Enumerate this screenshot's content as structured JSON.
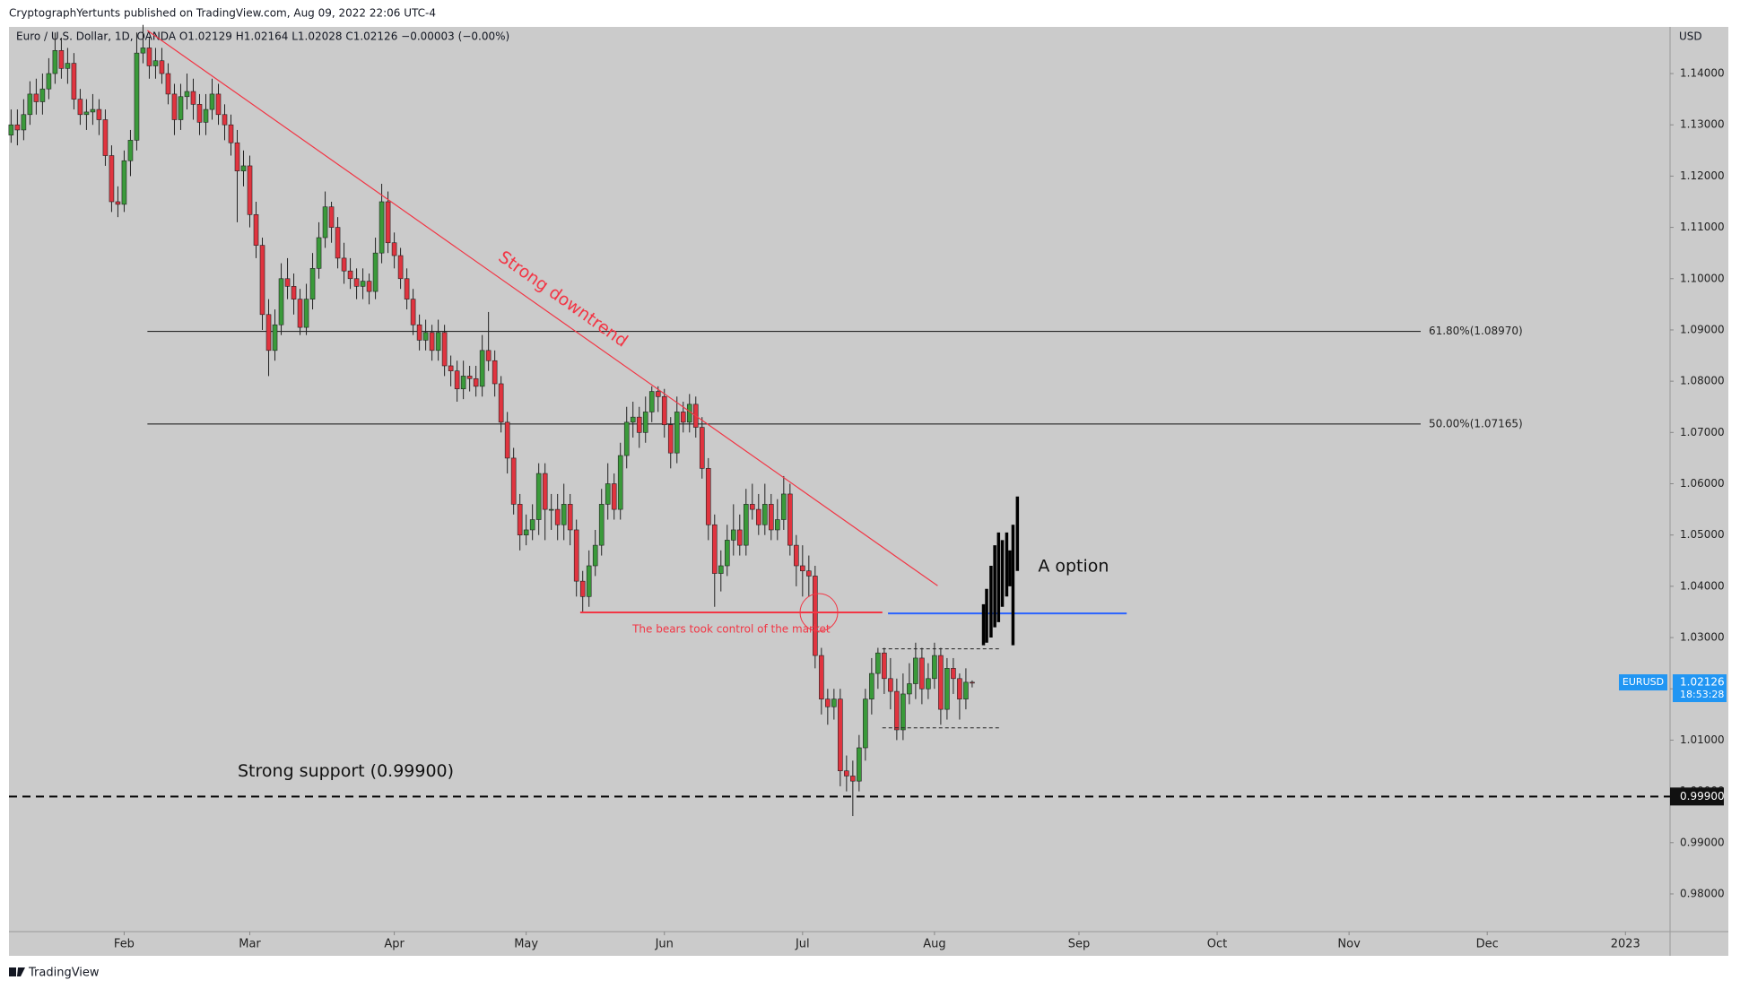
{
  "header": {
    "publisher": "CryptographYertunts published on TradingView.com, Aug 09, 2022 22:06 UTC-4",
    "legend": "Euro / U.S. Dollar, 1D, OANDA  O1.02129  H1.02164  L1.02028  C1.02126  −0.00003 (−0.00%)"
  },
  "chart_data": {
    "type": "candlestick",
    "currency": "USD",
    "up_color": "#3a9a3a",
    "down_color": "#e0343f",
    "grid": false,
    "open": [
      1.128,
      1.13,
      1.129,
      1.132,
      1.136,
      1.1345,
      1.137,
      1.14,
      1.1445,
      1.141,
      1.142,
      1.135,
      1.132,
      1.1325,
      1.133,
      1.131,
      1.124,
      1.115,
      1.1145,
      1.123,
      1.127,
      1.144,
      1.145,
      1.1415,
      1.1425,
      1.14,
      1.136,
      1.131,
      1.1355,
      1.1365,
      1.134,
      1.1305,
      1.133,
      1.136,
      1.132,
      1.13,
      1.1265,
      1.121,
      1.122,
      1.1125,
      1.1065,
      1.093,
      1.086,
      1.091,
      1.1,
      1.0985,
      1.096,
      1.0905,
      1.096,
      1.102,
      1.108,
      1.114,
      1.11,
      1.104,
      1.1015,
      1.1,
      1.0985,
      1.0995,
      1.0975,
      1.105,
      1.115,
      1.107,
      1.1045,
      1.1,
      1.096,
      1.091,
      1.088,
      1.0895,
      1.086,
      1.0895,
      1.083,
      1.082,
      1.0785,
      1.081,
      1.0805,
      1.079,
      1.086,
      1.084,
      1.0795,
      1.072,
      1.065,
      1.056,
      1.05,
      1.051,
      1.053,
      1.062,
      1.055,
      1.055,
      1.052,
      1.056,
      1.051,
      1.041,
      1.038,
      1.044,
      1.048,
      1.056,
      1.06,
      1.055,
      1.0655,
      1.072,
      1.073,
      1.07,
      1.074,
      1.078,
      1.077,
      1.0715,
      1.066,
      1.074,
      1.072,
      1.0755,
      1.071,
      1.063,
      1.052,
      1.0425,
      1.044,
      1.049,
      1.051,
      1.048,
      1.056,
      1.055,
      1.052,
      1.056,
      1.051,
      1.053,
      1.058,
      1.048,
      1.044,
      1.043,
      1.042,
      1.0265,
      1.018,
      1.0165,
      1.018,
      1.004,
      1.003,
      1.002,
      1.0085,
      1.018,
      1.023,
      1.027,
      1.022,
      1.0195,
      1.012,
      1.019,
      1.021,
      1.026,
      1.02,
      1.022,
      1.0265,
      1.016,
      1.024,
      1.022,
      1.018,
      1.02129
    ],
    "high": [
      1.133,
      1.133,
      1.135,
      1.1385,
      1.139,
      1.14,
      1.143,
      1.148,
      1.147,
      1.145,
      1.144,
      1.137,
      1.135,
      1.136,
      1.135,
      1.133,
      1.126,
      1.118,
      1.125,
      1.129,
      1.148,
      1.1495,
      1.147,
      1.145,
      1.145,
      1.142,
      1.138,
      1.138,
      1.14,
      1.139,
      1.136,
      1.136,
      1.139,
      1.138,
      1.134,
      1.132,
      1.129,
      1.125,
      1.124,
      1.115,
      1.108,
      1.096,
      1.094,
      1.103,
      1.104,
      1.101,
      1.098,
      1.099,
      1.105,
      1.111,
      1.117,
      1.115,
      1.112,
      1.107,
      1.104,
      1.102,
      1.102,
      1.101,
      1.108,
      1.1185,
      1.117,
      1.109,
      1.106,
      1.102,
      1.098,
      1.093,
      1.092,
      1.091,
      1.092,
      1.091,
      1.085,
      1.084,
      1.084,
      1.083,
      1.083,
      1.089,
      1.0935,
      1.086,
      1.081,
      1.074,
      1.067,
      1.058,
      1.054,
      1.056,
      1.064,
      1.064,
      1.058,
      1.058,
      1.06,
      1.058,
      1.053,
      1.043,
      1.047,
      1.051,
      1.059,
      1.064,
      1.062,
      1.068,
      1.075,
      1.076,
      1.075,
      1.077,
      1.079,
      1.079,
      1.0785,
      1.073,
      1.077,
      1.076,
      1.0775,
      1.077,
      1.073,
      1.065,
      1.054,
      1.047,
      1.052,
      1.056,
      1.054,
      1.059,
      1.06,
      1.058,
      1.06,
      1.058,
      1.057,
      1.0615,
      1.06,
      1.05,
      1.048,
      1.046,
      1.044,
      1.028,
      1.02,
      1.02,
      1.02,
      1.007,
      1.006,
      1.011,
      1.02,
      1.026,
      1.028,
      1.028,
      1.026,
      1.022,
      1.023,
      1.025,
      1.029,
      1.028,
      1.025,
      1.029,
      1.028,
      1.026,
      1.026,
      1.023,
      1.024,
      1.02164
    ],
    "low": [
      1.1265,
      1.126,
      1.127,
      1.13,
      1.132,
      1.132,
      1.135,
      1.138,
      1.139,
      1.138,
      1.133,
      1.13,
      1.129,
      1.13,
      1.128,
      1.122,
      1.113,
      1.112,
      1.113,
      1.12,
      1.125,
      1.142,
      1.139,
      1.139,
      1.138,
      1.134,
      1.128,
      1.129,
      1.133,
      1.131,
      1.128,
      1.128,
      1.131,
      1.13,
      1.127,
      1.124,
      1.111,
      1.118,
      1.11,
      1.104,
      1.09,
      1.081,
      1.084,
      1.089,
      1.096,
      1.093,
      1.089,
      1.089,
      1.094,
      1.1,
      1.106,
      1.107,
      1.102,
      1.099,
      1.098,
      1.096,
      1.096,
      1.095,
      1.096,
      1.103,
      1.105,
      1.102,
      1.098,
      1.094,
      1.089,
      1.086,
      1.086,
      1.084,
      1.084,
      1.081,
      1.079,
      1.076,
      1.0765,
      1.078,
      1.077,
      1.077,
      1.082,
      1.077,
      1.07,
      1.062,
      1.054,
      1.047,
      1.048,
      1.049,
      1.05,
      1.049,
      1.051,
      1.049,
      1.049,
      1.048,
      1.038,
      1.035,
      1.036,
      1.042,
      1.046,
      1.053,
      1.053,
      1.053,
      1.063,
      1.069,
      1.067,
      1.068,
      1.072,
      1.074,
      1.069,
      1.063,
      1.064,
      1.07,
      1.07,
      1.069,
      1.061,
      1.049,
      1.036,
      1.039,
      1.042,
      1.046,
      1.046,
      1.046,
      1.053,
      1.05,
      1.05,
      1.049,
      1.049,
      1.051,
      1.046,
      1.04,
      1.038,
      1.038,
      1.024,
      1.015,
      1.013,
      1.014,
      1.001,
      1.0,
      0.9952,
      1.0,
      1.006,
      1.015,
      1.02,
      1.019,
      1.016,
      1.01,
      1.01,
      1.017,
      1.018,
      1.017,
      1.018,
      1.02,
      1.013,
      1.014,
      1.019,
      1.014,
      1.016,
      1.02028
    ],
    "close": [
      1.13,
      1.129,
      1.132,
      1.136,
      1.1345,
      1.137,
      1.14,
      1.1445,
      1.141,
      1.142,
      1.135,
      1.132,
      1.1325,
      1.133,
      1.131,
      1.124,
      1.115,
      1.1145,
      1.123,
      1.127,
      1.144,
      1.145,
      1.1415,
      1.1425,
      1.14,
      1.136,
      1.131,
      1.1355,
      1.1365,
      1.134,
      1.1305,
      1.133,
      1.136,
      1.132,
      1.13,
      1.1265,
      1.121,
      1.122,
      1.1125,
      1.1065,
      1.093,
      1.086,
      1.091,
      1.1,
      1.0985,
      1.096,
      1.0905,
      1.096,
      1.102,
      1.108,
      1.114,
      1.11,
      1.104,
      1.1015,
      1.1,
      1.0985,
      1.0995,
      1.0975,
      1.105,
      1.115,
      1.107,
      1.1045,
      1.1,
      1.096,
      1.091,
      1.088,
      1.0895,
      1.086,
      1.0895,
      1.083,
      1.082,
      1.0785,
      1.081,
      1.0805,
      1.079,
      1.086,
      1.084,
      1.0795,
      1.072,
      1.065,
      1.056,
      1.05,
      1.051,
      1.053,
      1.062,
      1.055,
      1.055,
      1.052,
      1.056,
      1.051,
      1.041,
      1.038,
      1.044,
      1.048,
      1.056,
      1.06,
      1.055,
      1.0655,
      1.072,
      1.073,
      1.07,
      1.074,
      1.078,
      1.077,
      1.0715,
      1.066,
      1.074,
      1.072,
      1.0755,
      1.071,
      1.063,
      1.052,
      1.0425,
      1.044,
      1.049,
      1.051,
      1.048,
      1.056,
      1.055,
      1.052,
      1.056,
      1.051,
      1.053,
      1.058,
      1.048,
      1.044,
      1.043,
      1.042,
      1.0265,
      1.018,
      1.0165,
      1.018,
      1.004,
      1.003,
      1.002,
      1.0085,
      1.018,
      1.023,
      1.027,
      1.022,
      1.0195,
      1.012,
      1.019,
      1.021,
      1.026,
      1.02,
      1.022,
      1.0265,
      1.016,
      1.024,
      1.022,
      1.018,
      1.02129,
      1.02126
    ],
    "xlim": [
      -0.34,
      264.1
    ],
    "xticks": [
      {
        "value": 18,
        "label": "Feb"
      },
      {
        "value": 38,
        "label": "Mar"
      },
      {
        "value": 61,
        "label": "Apr"
      },
      {
        "value": 82,
        "label": "May"
      },
      {
        "value": 104,
        "label": "Jun"
      },
      {
        "value": 126,
        "label": "Jul"
      },
      {
        "value": 147,
        "label": "Aug"
      },
      {
        "value": 170,
        "label": "Sep"
      },
      {
        "value": 192,
        "label": "Oct"
      },
      {
        "value": 213,
        "label": "Nov"
      },
      {
        "value": 235,
        "label": "Dec"
      },
      {
        "value": 257,
        "label": "2023"
      }
    ],
    "ylim": [
      0.97265,
      1.1491
    ],
    "yticks": [
      {
        "value": 0.98,
        "label": "0.98000"
      },
      {
        "value": 0.99,
        "label": "0.99000"
      },
      {
        "value": 1.0,
        "label": "1.00000"
      },
      {
        "value": 1.01,
        "label": "1.01000"
      },
      {
        "value": 1.02,
        "label": "1.02000"
      },
      {
        "value": 1.03,
        "label": "1.03000"
      },
      {
        "value": 1.04,
        "label": "1.04000"
      },
      {
        "value": 1.05,
        "label": "1.05000"
      },
      {
        "value": 1.06,
        "label": "1.06000"
      },
      {
        "value": 1.07,
        "label": "1.07000"
      },
      {
        "value": 1.08,
        "label": "1.08000"
      },
      {
        "value": 1.09,
        "label": "1.09000"
      },
      {
        "value": 1.1,
        "label": "1.10000"
      },
      {
        "value": 1.11,
        "label": "1.11000"
      },
      {
        "value": 1.12,
        "label": "1.12000"
      },
      {
        "value": 1.13,
        "label": "1.13000"
      },
      {
        "value": 1.14,
        "label": "1.14000"
      }
    ],
    "last_price": {
      "symbol": "EURUSD",
      "value": 1.02126,
      "countdown": "18:53:28",
      "color": "#2196f3"
    },
    "annotations": {
      "fib_levels": [
        {
          "value": 1.0897,
          "label": "61.80%(1.08970)",
          "x": [
            21.7,
            224.4
          ]
        },
        {
          "value": 1.07165,
          "label": "50.00%(1.07165)",
          "x": [
            21.7,
            224.4
          ]
        }
      ],
      "trendline": {
        "text": "Strong downtrend",
        "x": [
          21.7,
          147.5
        ],
        "y": [
          1.1484,
          1.0401
        ],
        "color": "#f23645"
      },
      "bears_line": {
        "text": "The bears took control of the market",
        "x": [
          90.6,
          138.7
        ],
        "y": 1.0349,
        "color": "#f23645",
        "circle_x": 128.6
      },
      "blue_line": {
        "x": [
          139.6,
          177.6
        ],
        "y": 1.0347,
        "color": "#2962ff"
      },
      "range_box": {
        "x": [
          138.7,
          157.4
        ],
        "top": 1.0278,
        "bottom": 1.0124
      },
      "support": {
        "value": 0.999,
        "label": "0.99900",
        "text": "Strong support (0.99900)"
      },
      "projection": {
        "text": "A option",
        "x": [
          154.8,
          155.3,
          156,
          156.6,
          157.2,
          157.8,
          158.5,
          159,
          159.5,
          160.2
        ],
        "high": [
          1.0365,
          1.0395,
          1.044,
          1.048,
          1.0505,
          1.049,
          1.0505,
          1.047,
          1.052,
          1.0575
        ],
        "low": [
          1.0285,
          1.029,
          1.03,
          1.032,
          1.033,
          1.036,
          1.038,
          1.04,
          1.0285,
          1.043
        ]
      }
    }
  },
  "footer": "TradingView"
}
